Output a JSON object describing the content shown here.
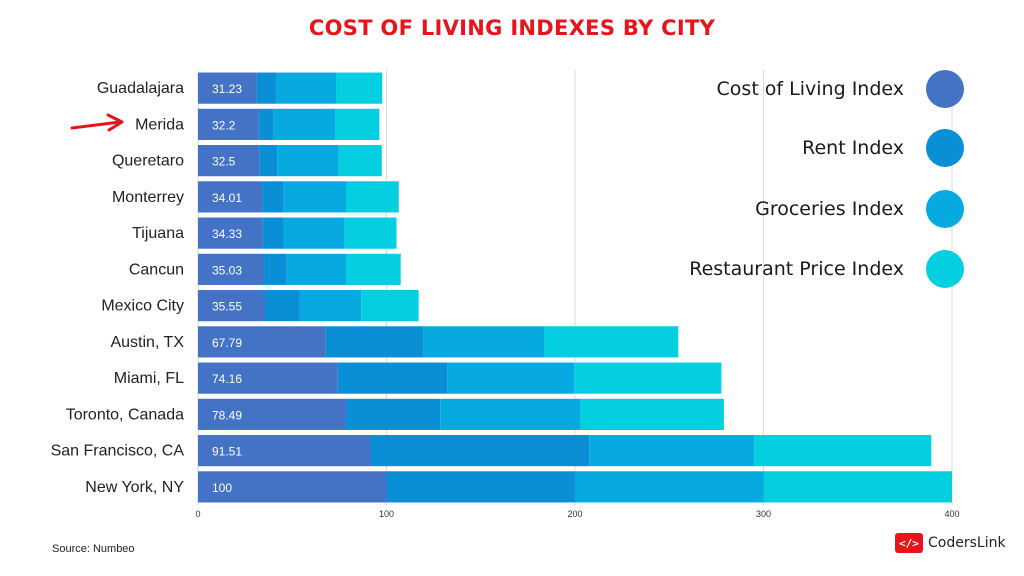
{
  "title": "COST OF LIVING INDEXES BY CITY",
  "source": "Source: Numbeo",
  "brand": {
    "icon_text": "</>",
    "name": "CodersLink",
    "icon": "code-brackets-icon"
  },
  "annotation": {
    "icon": "red-arrow-icon",
    "target": "Merida",
    "color": "#e8141c"
  },
  "chart_data": {
    "type": "bar",
    "orientation": "horizontal",
    "stacked": true,
    "title": "COST OF LIVING INDEXES BY CITY",
    "categories": [
      "Guadalajara",
      "Merida",
      "Queretaro",
      "Monterrey",
      "Tijuana",
      "Cancun",
      "Mexico City",
      "Austin, TX",
      "Miami, FL",
      "Toronto, Canada",
      "San Francisco, CA",
      "New York, NY"
    ],
    "series": [
      {
        "name": "Cost of Living Index",
        "color": "#4472c4",
        "values": [
          31.23,
          32.2,
          32.5,
          34.01,
          34.33,
          35.03,
          35.55,
          67.79,
          74.16,
          78.49,
          91.51,
          100
        ]
      },
      {
        "name": "Rent Index",
        "color": "#0a8ed6",
        "values": [
          10.5,
          8,
          9.5,
          11.5,
          11,
          12,
          18.5,
          52,
          58,
          50,
          116,
          100
        ]
      },
      {
        "name": "Groceries Index",
        "color": "#06aae0",
        "values": [
          31.5,
          32.5,
          32.5,
          33,
          32.5,
          31.5,
          32.5,
          64,
          67.5,
          74.5,
          87.5,
          100
        ]
      },
      {
        "name": "Restaurant Price Index",
        "color": "#04cfe0",
        "values": [
          24.5,
          23.5,
          23,
          28,
          27.5,
          29,
          30.5,
          71,
          78,
          76,
          94,
          100
        ]
      }
    ],
    "data_labels": [
      "31.23",
      "32.2",
      "32.5",
      "34.01",
      "34.33",
      "35.03",
      "35.55",
      "67.79",
      "74.16",
      "78.49",
      "91.51",
      "100"
    ],
    "xlim": [
      0,
      400
    ],
    "xticks": [
      "0",
      "100",
      "200",
      "300",
      "400"
    ],
    "grid": "vertical",
    "legend_position": "right"
  }
}
